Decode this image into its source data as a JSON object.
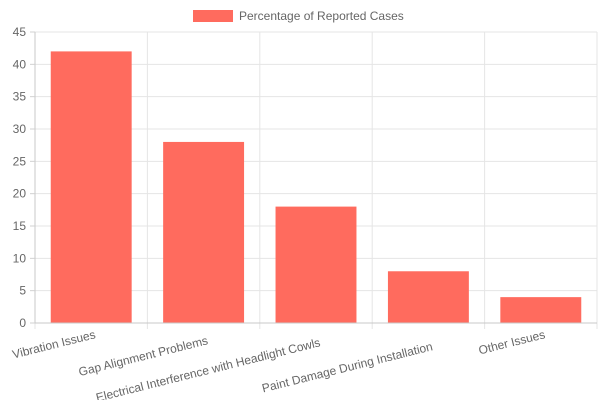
{
  "chart_data": {
    "type": "bar",
    "categories": [
      "Vibration Issues",
      "Gap Alignment Problems",
      "Electrical Interference with Headlight Cowls",
      "Paint Damage During Installation",
      "Other Issues"
    ],
    "series": [
      {
        "name": "Percentage of Reported Cases",
        "values": [
          42,
          28,
          18,
          8,
          4
        ],
        "color": "#ff6b5e"
      }
    ],
    "ylim": [
      0,
      45
    ],
    "yticks": [
      0,
      5,
      10,
      15,
      20,
      25,
      30,
      35,
      40,
      45
    ],
    "grid": true,
    "legend_position": "top-center",
    "title": "",
    "xlabel": "",
    "ylabel": ""
  }
}
